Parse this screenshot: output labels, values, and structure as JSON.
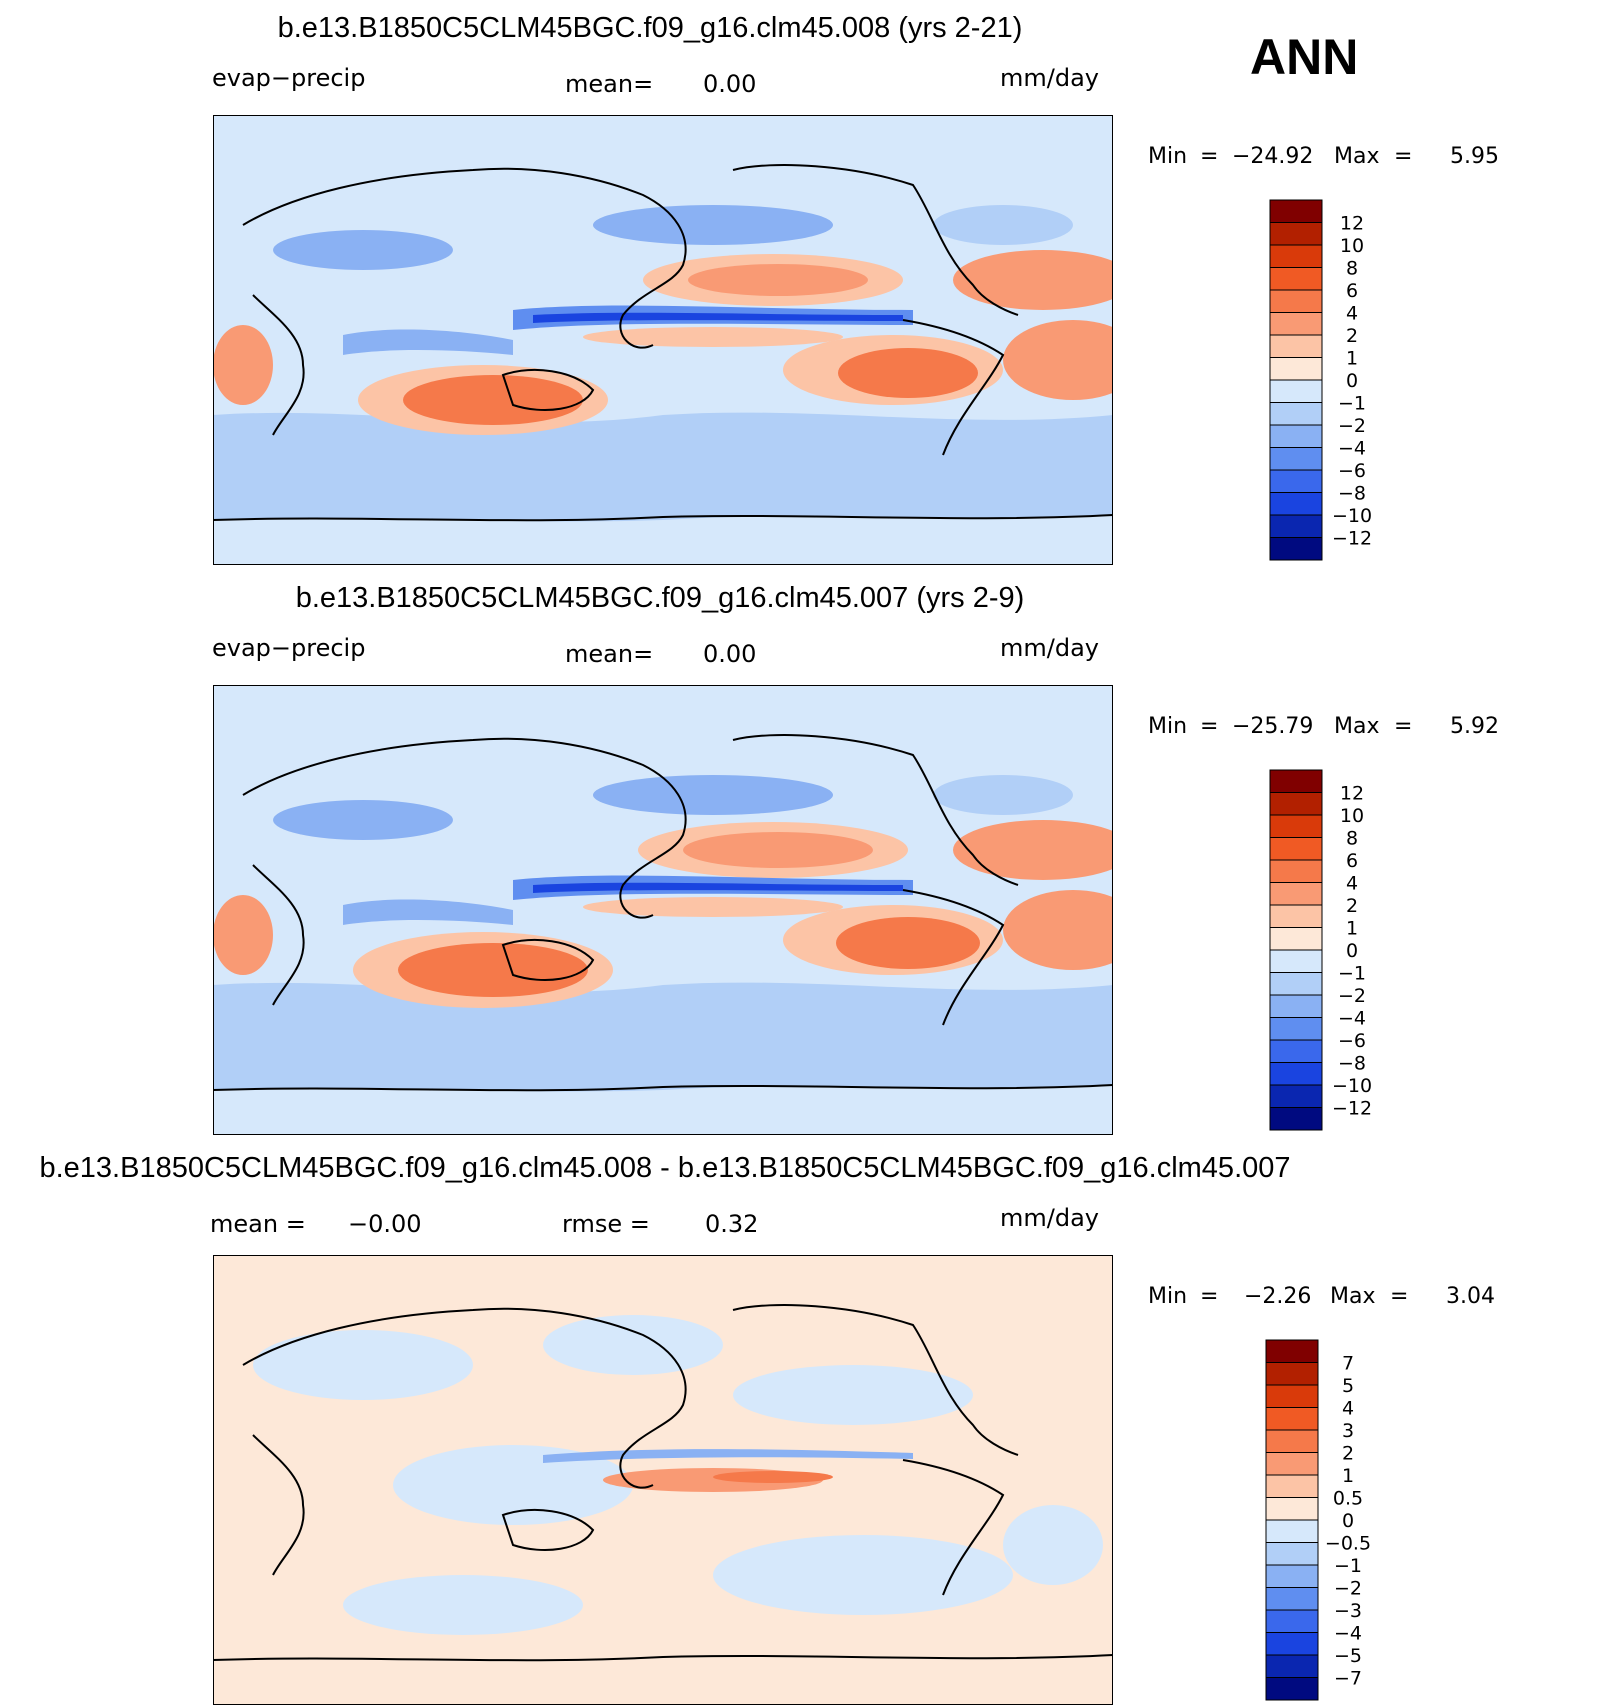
{
  "season_label": "ANN",
  "units": "mm/day",
  "panels": [
    {
      "id": "panel-1",
      "title": "b.e13.B1850C5CLM45BGC.f09_g16.clm45.008 (yrs 2-21)",
      "left_label": "evap−precip",
      "mean_label": "mean=",
      "mean_value": "0.00",
      "min_label": "Min",
      "min_value": "−24.92",
      "max_label": "Max",
      "max_value": "5.95",
      "colorbar": {
        "labels": [
          "12",
          "10",
          "8",
          "6",
          "4",
          "2",
          "1",
          "0",
          "−1",
          "−2",
          "−4",
          "−6",
          "−8",
          "−10",
          "−12"
        ],
        "colors": [
          "#800000",
          "#b22000",
          "#d93a0a",
          "#f05a24",
          "#f5794a",
          "#f99a74",
          "#fcc4a6",
          "#fde8d8",
          "#d6e8fb",
          "#b1cff7",
          "#8ab1f3",
          "#5f8ef0",
          "#3a68ec",
          "#1a44e0",
          "#0a26b0",
          "#000a80"
        ]
      }
    },
    {
      "id": "panel-2",
      "title": "b.e13.B1850C5CLM45BGC.f09_g16.clm45.007 (yrs 2-9)",
      "left_label": "evap−precip",
      "mean_label": "mean=",
      "mean_value": "0.00",
      "min_label": "Min",
      "min_value": "−25.79",
      "max_label": "Max",
      "max_value": "5.92",
      "colorbar": {
        "labels": [
          "12",
          "10",
          "8",
          "6",
          "4",
          "2",
          "1",
          "0",
          "−1",
          "−2",
          "−4",
          "−6",
          "−8",
          "−10",
          "−12"
        ],
        "colors": [
          "#800000",
          "#b22000",
          "#d93a0a",
          "#f05a24",
          "#f5794a",
          "#f99a74",
          "#fcc4a6",
          "#fde8d8",
          "#d6e8fb",
          "#b1cff7",
          "#8ab1f3",
          "#5f8ef0",
          "#3a68ec",
          "#1a44e0",
          "#0a26b0",
          "#000a80"
        ]
      }
    },
    {
      "id": "panel-3",
      "title": "b.e13.B1850C5CLM45BGC.f09_g16.clm45.008 - b.e13.B1850C5CLM45BGC.f09_g16.clm45.007",
      "left_label": "mean =",
      "left_value": "−0.00",
      "mean_label": "rmse =",
      "mean_value": "0.32",
      "min_label": "Min",
      "min_value": "−2.26",
      "max_label": "Max",
      "max_value": "3.04",
      "colorbar": {
        "labels": [
          "7",
          "5",
          "4",
          "3",
          "2",
          "1",
          "0.5",
          "0",
          "−0.5",
          "−1",
          "−2",
          "−3",
          "−4",
          "−5",
          "−7"
        ],
        "colors": [
          "#800000",
          "#b22000",
          "#d93a0a",
          "#f05a24",
          "#f5794a",
          "#f99a74",
          "#fcc4a6",
          "#fde8d8",
          "#d6e8fb",
          "#b1cff7",
          "#8ab1f3",
          "#5f8ef0",
          "#3a68ec",
          "#1a44e0",
          "#0a26b0",
          "#000a80"
        ]
      }
    }
  ]
}
